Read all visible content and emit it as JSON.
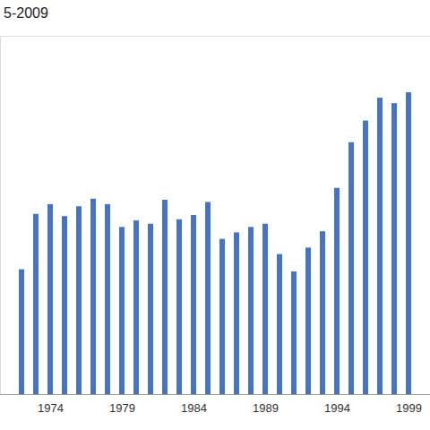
{
  "chart_data": {
    "type": "bar",
    "title": "5-2009",
    "categories": [
      1972,
      1973,
      1974,
      1975,
      1976,
      1977,
      1978,
      1979,
      1980,
      1981,
      1982,
      1983,
      1984,
      1985,
      1986,
      1987,
      1988,
      1989,
      1990,
      1991,
      1992,
      1993,
      1994,
      1995,
      1996,
      1997,
      1998,
      1999
    ],
    "values": [
      115,
      166,
      175,
      164,
      173,
      180,
      175,
      154,
      160,
      157,
      179,
      161,
      165,
      177,
      143,
      149,
      154,
      157,
      129,
      113,
      135,
      150,
      190,
      232,
      252,
      273,
      268,
      278
    ],
    "color": "#4472c4",
    "ylim": [
      0,
      330
    ],
    "xticks": [
      1974,
      1979,
      1984,
      1989,
      1994,
      1999
    ],
    "grid": false,
    "tick_labels": "x"
  }
}
